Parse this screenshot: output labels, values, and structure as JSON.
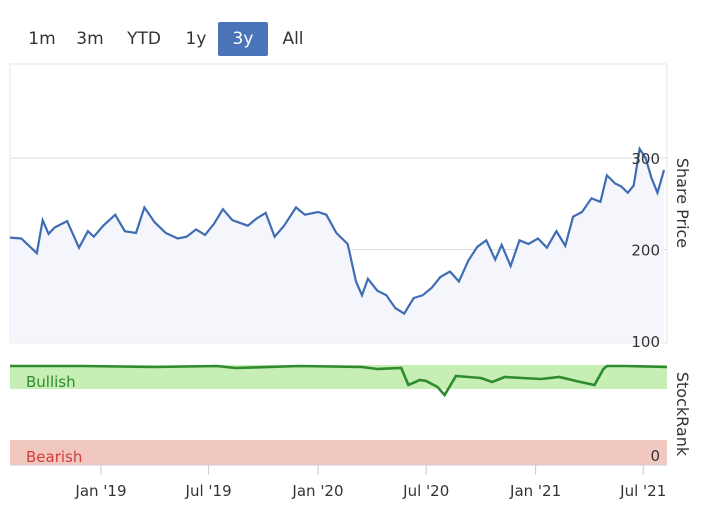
{
  "range_selector": {
    "buttons": [
      "1m",
      "3m",
      "YTD",
      "1y",
      "3y",
      "All"
    ],
    "active": "3y"
  },
  "colors": {
    "price_line": "#3f6db3",
    "price_fill": "#f4f6fb",
    "gridline": "#dddddd",
    "bullish_band": "#c7eeb4",
    "bullish_text": "#2e8b2e",
    "bearish_band": "#f0c8c0",
    "bearish_text": "#d23c3c",
    "rank_line_high": "#2e8b2e",
    "rank_line_low": "#8497b5",
    "active_button": "#4a73b8"
  },
  "chart_data": [
    {
      "type": "line",
      "name": "share-price",
      "ylabel": "Share Price",
      "ylim": [
        100,
        300
      ],
      "y_ticks": [
        "100",
        "200",
        "300"
      ],
      "x_ticks": [
        "Jan '19",
        "Jul '19",
        "Jan '20",
        "Jul '20",
        "Jan '21",
        "Jul '21"
      ],
      "x_range": [
        "2018-08-01",
        "2021-08-10"
      ],
      "series": [
        {
          "x": [
            "2018-08-01",
            "2018-08-20",
            "2018-09-15",
            "2018-09-25",
            "2018-10-05",
            "2018-10-15",
            "2018-11-05",
            "2018-11-25",
            "2018-12-10",
            "2018-12-20",
            "2019-01-05",
            "2019-01-25",
            "2019-02-10",
            "2019-03-01",
            "2019-03-15",
            "2019-04-01",
            "2019-04-20",
            "2019-05-10",
            "2019-05-25",
            "2019-06-10",
            "2019-06-25",
            "2019-07-10",
            "2019-07-25",
            "2019-08-10",
            "2019-09-05",
            "2019-09-20",
            "2019-10-05",
            "2019-10-20",
            "2019-11-05",
            "2019-11-25",
            "2019-12-10",
            "2020-01-01",
            "2020-01-15",
            "2020-02-01",
            "2020-02-20",
            "2020-03-05",
            "2020-03-15",
            "2020-03-25",
            "2020-04-10",
            "2020-04-25",
            "2020-05-10",
            "2020-05-25",
            "2020-06-10",
            "2020-06-25",
            "2020-07-10",
            "2020-07-25",
            "2020-08-10",
            "2020-08-25",
            "2020-09-10",
            "2020-09-25",
            "2020-10-10",
            "2020-10-25",
            "2020-11-05",
            "2020-11-20",
            "2020-12-05",
            "2020-12-20",
            "2021-01-05",
            "2021-01-20",
            "2021-02-05",
            "2021-02-20",
            "2021-03-05",
            "2021-03-20",
            "2021-04-05",
            "2021-04-20",
            "2021-05-01",
            "2021-05-15",
            "2021-05-25",
            "2021-06-05",
            "2021-06-15",
            "2021-06-25",
            "2021-07-05",
            "2021-07-15",
            "2021-07-25",
            "2021-08-05"
          ],
          "y": [
            213,
            212,
            196,
            232,
            217,
            224,
            231,
            202,
            220,
            214,
            226,
            238,
            220,
            218,
            246,
            230,
            218,
            212,
            214,
            222,
            216,
            228,
            244,
            232,
            226,
            234,
            240,
            214,
            226,
            246,
            238,
            241,
            238,
            218,
            206,
            165,
            150,
            168,
            155,
            150,
            136,
            130,
            147,
            150,
            158,
            170,
            176,
            165,
            188,
            203,
            210,
            189,
            205,
            182,
            210,
            206,
            212,
            202,
            220,
            204,
            236,
            241,
            256,
            252,
            281,
            272,
            269,
            262,
            270,
            310,
            300,
            278,
            262,
            287
          ]
        }
      ]
    },
    {
      "type": "area",
      "name": "stockrank",
      "ylabel": "StockRank",
      "y_ticks": [
        "0"
      ],
      "bands": [
        "Bullish",
        "Bearish"
      ],
      "ylim": [
        0,
        100
      ],
      "series": [
        {
          "x": [
            "2018-08-01",
            "2018-12-01",
            "2019-04-01",
            "2019-07-15",
            "2019-08-15",
            "2019-12-01",
            "2020-03-15",
            "2020-04-10",
            "2020-05-20",
            "2020-06-01",
            "2020-06-20",
            "2020-07-01",
            "2020-07-20",
            "2020-08-01",
            "2020-08-20",
            "2020-09-10",
            "2020-10-01",
            "2020-10-20",
            "2020-11-10",
            "2020-12-10",
            "2021-01-10",
            "2021-02-10",
            "2021-03-10",
            "2021-04-10",
            "2021-04-25",
            "2021-05-01",
            "2021-06-01",
            "2021-08-10"
          ],
          "y": [
            99,
            99,
            98,
            99,
            97,
            99,
            98,
            96,
            97,
            80,
            85,
            84,
            78,
            70,
            89,
            88,
            87,
            83,
            88,
            87,
            86,
            88,
            84,
            80,
            96,
            99,
            99,
            98
          ]
        }
      ]
    }
  ]
}
